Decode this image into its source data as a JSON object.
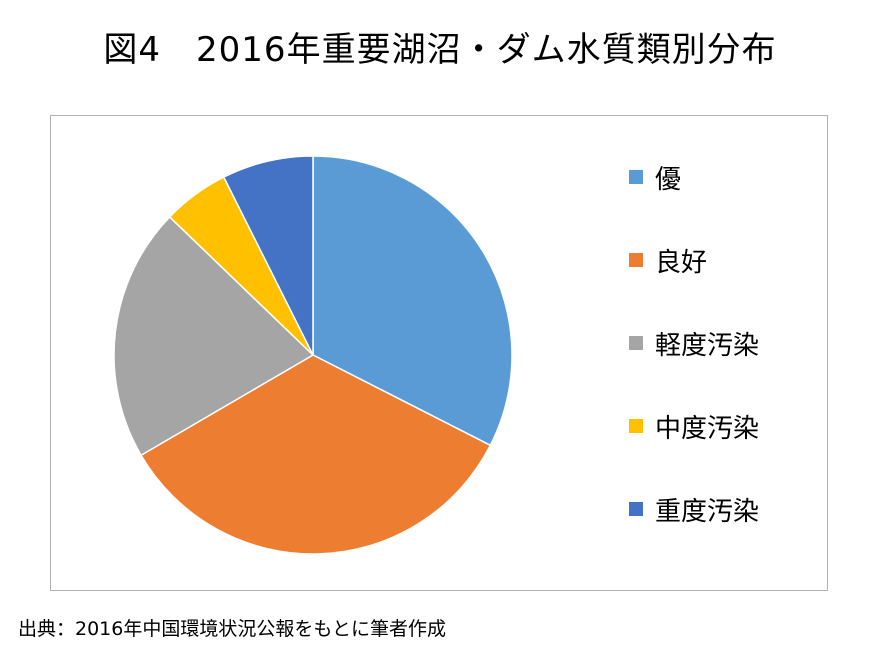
{
  "title": "図4　2016年重要湖沼・ダム水質類別分布",
  "source": "出典：2016年中国環境状況公報をもとに筆者作成",
  "chart_data": {
    "type": "pie",
    "categories": [
      "優",
      "良好",
      "軽度汚染",
      "中度汚染",
      "重度汚染"
    ],
    "values": [
      32.5,
      34.1,
      20.6,
      5.4,
      7.4
    ],
    "colors": [
      "#5B9BD5",
      "#ED7D31",
      "#A5A5A5",
      "#FFC000",
      "#4472C4"
    ],
    "start": "top",
    "direction": "clockwise",
    "legend_position": "right"
  }
}
